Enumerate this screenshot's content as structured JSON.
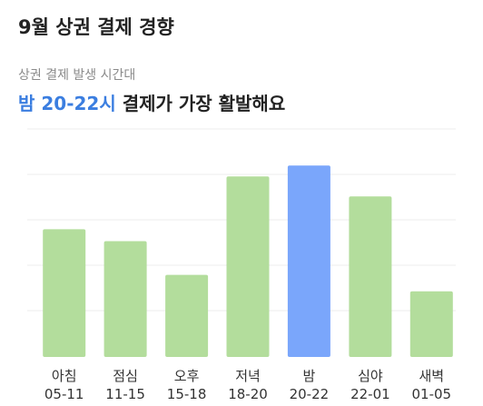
{
  "title": "9월 상권 결제 경향",
  "subtitle": "상권 결제 발생 시간대",
  "headline": {
    "highlight": "밤 20-22시",
    "rest": "결제가 가장 활발해요"
  },
  "colors": {
    "bar_default": "#b3dd9c",
    "bar_highlight": "#7aa6fb",
    "headline_highlight": "#3b7ee0",
    "gridline": "#ececec"
  },
  "chart_data": {
    "type": "bar",
    "categories": [
      "아침",
      "점심",
      "오후",
      "저녁",
      "밤",
      "심야",
      "새벽"
    ],
    "category_ranges": [
      "05-11",
      "11-15",
      "15-18",
      "18-20",
      "20-22",
      "22-01",
      "01-05"
    ],
    "values": [
      140,
      127,
      90,
      198,
      210,
      176,
      72
    ],
    "highlight_index": 4,
    "ylim": [
      0,
      250
    ],
    "grid": true
  }
}
